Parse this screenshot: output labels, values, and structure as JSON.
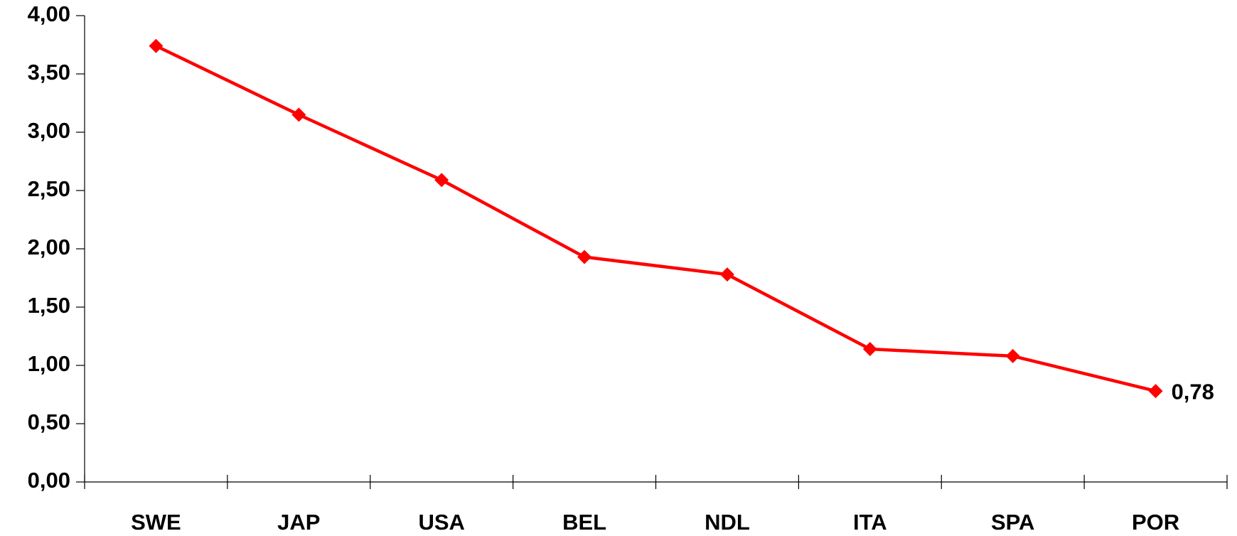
{
  "chart_data": {
    "type": "line",
    "categories": [
      "SWE",
      "JAP",
      "USA",
      "BEL",
      "NDL",
      "ITA",
      "SPA",
      "POR"
    ],
    "series": [
      {
        "color": "#ff0000",
        "values": [
          3.74,
          3.15,
          2.59,
          1.93,
          1.78,
          1.14,
          1.08,
          0.78
        ],
        "value_labels": [
          null,
          null,
          null,
          null,
          null,
          null,
          null,
          "0,78"
        ]
      }
    ],
    "ylim": [
      0,
      4
    ],
    "yticks": [
      {
        "value": 0,
        "label": "0,00"
      },
      {
        "value": 0.5,
        "label": "0,50"
      },
      {
        "value": 1,
        "label": "1,00"
      },
      {
        "value": 1.5,
        "label": "1,50"
      },
      {
        "value": 2,
        "label": "2,00"
      },
      {
        "value": 2.5,
        "label": "2,50"
      },
      {
        "value": 3,
        "label": "3,00"
      },
      {
        "value": 3.5,
        "label": "3,50"
      },
      {
        "value": 4,
        "label": "4,00"
      }
    ],
    "grid": false
  }
}
